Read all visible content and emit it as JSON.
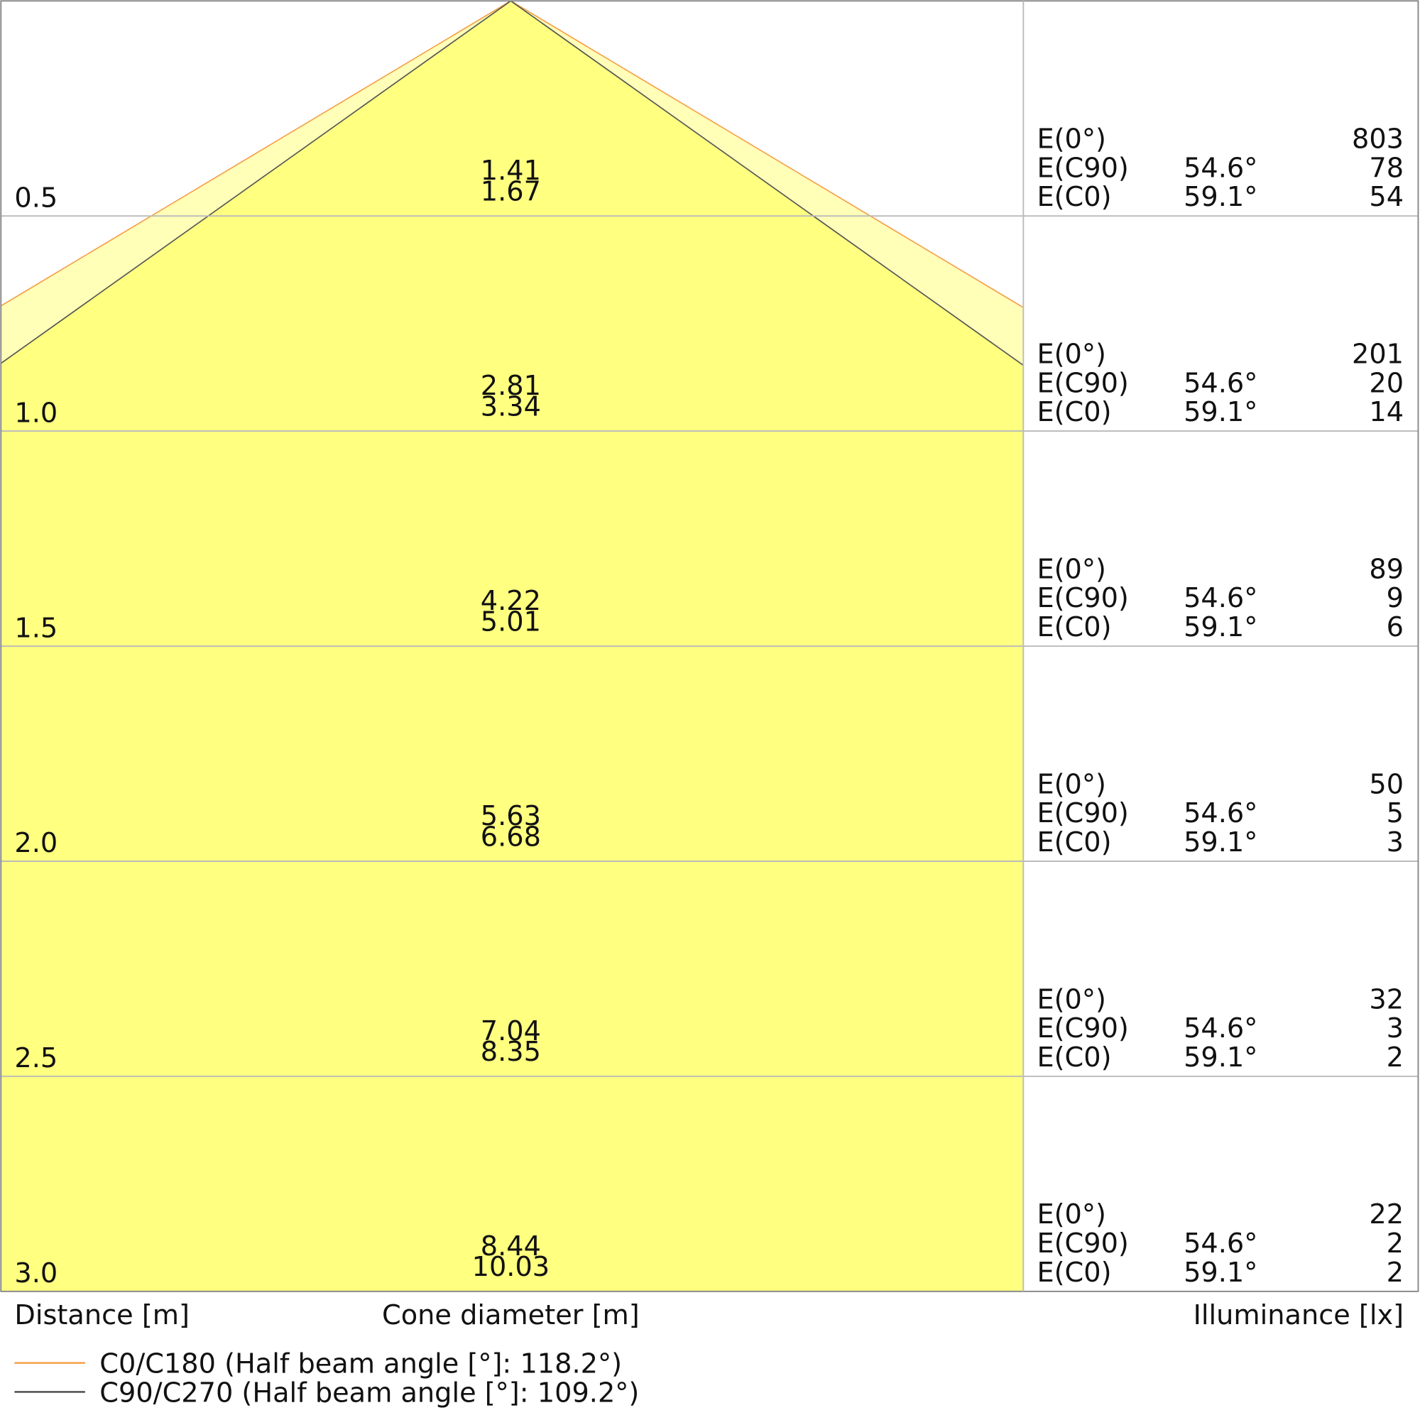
{
  "chart_data": {
    "type": "area",
    "title": "",
    "xlabel_distance": "Distance [m]",
    "xlabel_cone": "Cone diameter [m]",
    "xlabel_illuminance": "Illuminance [lx]",
    "distance_range": [
      0,
      3.0
    ],
    "grid": true,
    "colors": {
      "c0": "#f5a04a",
      "c90": "#555555",
      "fill_c90": "#ffff80",
      "fill_c0": "#ffffb8"
    },
    "legend": [
      {
        "name": "C0/C180 (Half beam angle [°]: 118.2°)",
        "color": "#f5a04a"
      },
      {
        "name": "C90/C270 (Half beam angle [°]: 109.2°)",
        "color": "#555555"
      }
    ],
    "rows": [
      {
        "distance": "0.5",
        "d": 0.5,
        "cone_c90": "1.41",
        "cone_c0": "1.67",
        "e0_label": "E(0°)",
        "e0": "803",
        "ec90_label": "E(C90)",
        "ec90_angle": "54.6°",
        "ec90": "78",
        "ec0_label": "E(C0)",
        "ec0_angle": "59.1°",
        "ec0": "54"
      },
      {
        "distance": "1.0",
        "d": 1.0,
        "cone_c90": "2.81",
        "cone_c0": "3.34",
        "e0_label": "E(0°)",
        "e0": "201",
        "ec90_label": "E(C90)",
        "ec90_angle": "54.6°",
        "ec90": "20",
        "ec0_label": "E(C0)",
        "ec0_angle": "59.1°",
        "ec0": "14"
      },
      {
        "distance": "1.5",
        "d": 1.5,
        "cone_c90": "4.22",
        "cone_c0": "5.01",
        "e0_label": "E(0°)",
        "e0": "89",
        "ec90_label": "E(C90)",
        "ec90_angle": "54.6°",
        "ec90": "9",
        "ec0_label": "E(C0)",
        "ec0_angle": "59.1°",
        "ec0": "6"
      },
      {
        "distance": "2.0",
        "d": 2.0,
        "cone_c90": "5.63",
        "cone_c0": "6.68",
        "e0_label": "E(0°)",
        "e0": "50",
        "ec90_label": "E(C90)",
        "ec90_angle": "54.6°",
        "ec90": "5",
        "ec0_label": "E(C0)",
        "ec0_angle": "59.1°",
        "ec0": "3"
      },
      {
        "distance": "2.5",
        "d": 2.5,
        "cone_c90": "7.04",
        "cone_c0": "8.35",
        "e0_label": "E(0°)",
        "e0": "32",
        "ec90_label": "E(C90)",
        "ec90_angle": "54.6°",
        "ec90": "3",
        "ec0_label": "E(C0)",
        "ec0_angle": "59.1°",
        "ec0": "2"
      },
      {
        "distance": "3.0",
        "d": 3.0,
        "cone_c90": "8.44",
        "cone_c0": "10.03",
        "e0_label": "E(0°)",
        "e0": "22",
        "ec90_label": "E(C90)",
        "ec90_angle": "54.6°",
        "ec90": "2",
        "ec0_label": "E(C0)",
        "ec0_angle": "59.1°",
        "ec0": "2"
      }
    ]
  }
}
